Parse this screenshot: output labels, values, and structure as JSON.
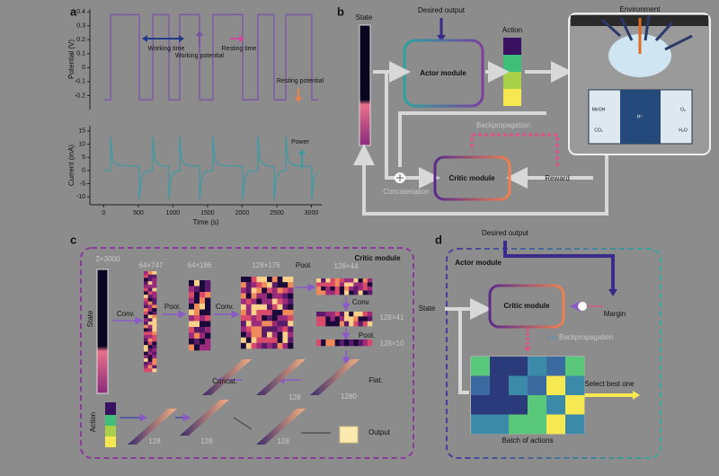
{
  "chart_data": [
    {
      "type": "line",
      "ylabel": "Potential (V)",
      "color": "#7a4fa8",
      "x": [
        0,
        99,
        99,
        514,
        514,
        709,
        709,
        942,
        942,
        1098,
        1098,
        1384,
        1384,
        1578,
        1578,
        2007,
        2007,
        2227,
        2227,
        2461,
        2461,
        2630,
        2630,
        3006,
        3006,
        3100
      ],
      "values": [
        -0.23,
        -0.23,
        0.38,
        0.38,
        -0.23,
        -0.23,
        0.38,
        0.38,
        -0.23,
        -0.23,
        0.38,
        0.38,
        -0.23,
        -0.23,
        0.38,
        0.38,
        -0.23,
        -0.23,
        0.38,
        0.38,
        -0.23,
        -0.23,
        0.38,
        0.38,
        -0.23,
        -0.23
      ],
      "xlim": [
        -200,
        3150
      ],
      "ylim": [
        -0.3,
        0.42
      ],
      "yticks": [
        0.4,
        0.3,
        0.2,
        0.1,
        0,
        -0.1,
        -0.2
      ],
      "annotations": [
        "Working time",
        "Working potential",
        "Resting time",
        "Resting potential"
      ]
    },
    {
      "type": "line",
      "ylabel": "Current (mA)",
      "xlabel": "Time (s)",
      "color": "#3f9aa3",
      "x": [
        0,
        99,
        99,
        129,
        199,
        514,
        514,
        544,
        594,
        709,
        709,
        739,
        809,
        942,
        942,
        972,
        1022,
        1098,
        1098,
        1128,
        1198,
        1384,
        1384,
        1414,
        1464,
        1578,
        1578,
        1608,
        1678,
        2007,
        2007,
        2037,
        2087,
        2227,
        2227,
        2257,
        2327,
        2461,
        2461,
        2491,
        2541,
        2630,
        2630,
        2660,
        2730,
        3006,
        3006,
        3036,
        3086
      ],
      "values": [
        0,
        0,
        13,
        4,
        2,
        1.5,
        -11,
        -3,
        -0.5,
        0,
        13,
        4,
        2,
        1.5,
        -11,
        -3,
        -0.5,
        0,
        13,
        4,
        2,
        1.5,
        -11,
        -3,
        -0.5,
        0,
        13,
        4,
        2,
        1.5,
        -11,
        -3,
        -0.5,
        0,
        13,
        4,
        2,
        1.5,
        -11,
        -3,
        -0.5,
        0,
        13,
        4,
        2,
        1.5,
        -11,
        -3,
        -0.5
      ],
      "xlim": [
        -200,
        3150
      ],
      "ylim": [
        -13,
        17
      ],
      "xticks": [
        0,
        500,
        1000,
        1500,
        2000,
        2500,
        3000
      ],
      "yticks": [
        15,
        10,
        5,
        0,
        -5,
        -10
      ],
      "annotations": [
        "Power"
      ]
    }
  ],
  "panel_labels": [
    "a",
    "b",
    "c",
    "d"
  ],
  "panel_b": {
    "state": "State",
    "desired_output": "Desired output",
    "action": "Action",
    "environment": "Environment",
    "actor": "Actor module",
    "critic": "Critic module",
    "reward": "Reward",
    "backprop": "Backpropagation",
    "concat": "Concatenation",
    "cell": [
      "MeOH",
      "O₂",
      "CO₂",
      "H₂O",
      "H⁺"
    ]
  },
  "panel_c": {
    "title": "Critic module",
    "dims": [
      "2×3000",
      "64×747",
      "64×186",
      "128×176",
      "128×44",
      "128×41",
      "128×10",
      "1280",
      "128",
      "128",
      "128",
      "128"
    ],
    "ops": [
      "Conv.",
      "Pool.",
      "Conv.",
      "Pool.",
      "Conv.",
      "Pool.",
      "Flat.",
      "Concat."
    ],
    "state": "State",
    "action": "Action",
    "output": "Output"
  },
  "panel_d": {
    "desired_output": "Desired output",
    "title": "Actor module",
    "state": "State",
    "critic": "Critic module",
    "margin": "Margin",
    "backprop": "Backpropagation",
    "batch": "Batch of actions",
    "select": "Select best one"
  }
}
